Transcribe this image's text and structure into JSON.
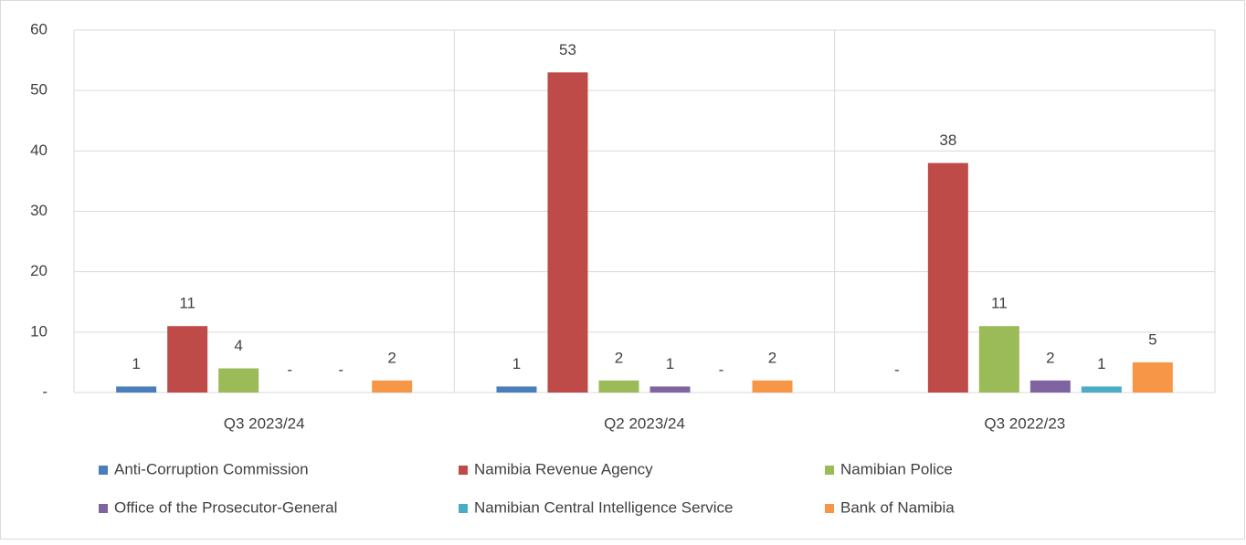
{
  "chart_data": {
    "type": "bar",
    "categories": [
      "Q3 2023/24",
      "Q2 2023/24",
      "Q3 2022/23"
    ],
    "series": [
      {
        "name": "Anti-Corruption Commission",
        "color": "#4a7ebb",
        "values": [
          1,
          1,
          0
        ],
        "value_labels": [
          "1",
          "1",
          "-"
        ]
      },
      {
        "name": "Namibia Revenue Agency",
        "color": "#be4b48",
        "values": [
          11,
          53,
          38
        ]
      },
      {
        "name": "Namibian Police",
        "color": "#9bbb59",
        "values": [
          4,
          2,
          11
        ]
      },
      {
        "name": "Office of the Prosecutor-General",
        "color": "#8064a2",
        "values": [
          0,
          1,
          2
        ],
        "value_labels": [
          "-",
          "1",
          "2"
        ]
      },
      {
        "name": "Namibian Central Intelligence Service",
        "color": "#4bacc6",
        "values": [
          0,
          0,
          1
        ],
        "value_labels": [
          "-",
          "-",
          "1"
        ]
      },
      {
        "name": "Bank of Namibia",
        "color": "#f79646",
        "values": [
          2,
          2,
          5
        ]
      }
    ],
    "ylim": [
      0,
      60
    ],
    "yticks": [
      {
        "value": 0,
        "label": "-"
      },
      10,
      20,
      30,
      40,
      50,
      60
    ],
    "grid": true
  }
}
